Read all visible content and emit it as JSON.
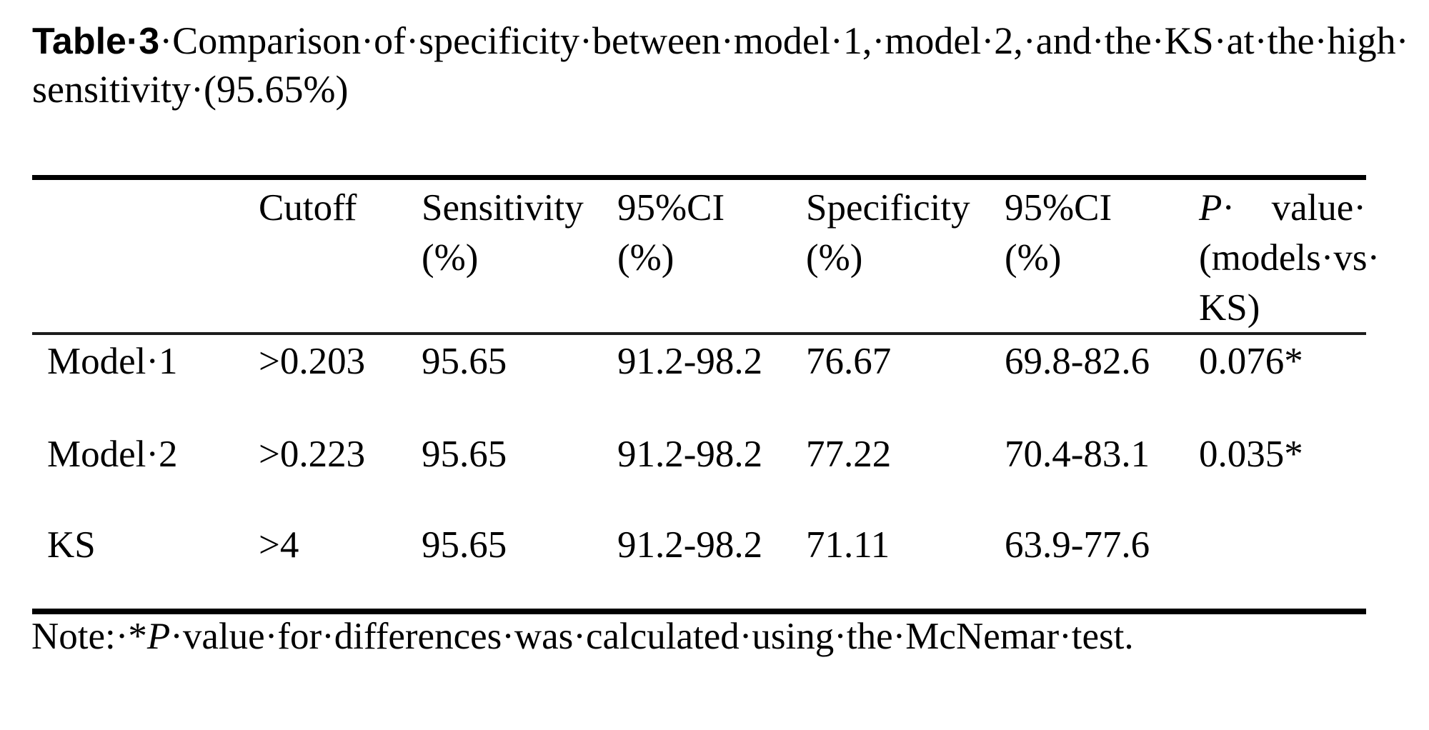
{
  "title": {
    "label": "Table·3",
    "line1_rest": "·Comparison·of·specificity·between·model·1,·model·2,·and·the·KS·at·the·high·",
    "line2": "sensitivity·(95.65%)"
  },
  "table": {
    "header": {
      "cutoff": "Cutoff",
      "sensitivity_l1": "Sensitivity",
      "sensitivity_l2": "(%)",
      "ci1_l1": "95%CI",
      "ci1_l2": "(%)",
      "specificity_l1": "Specificity",
      "specificity_l2": "(%)",
      "pvalue_p": "P",
      "pvalue_p_dot": "·",
      "pvalue_value": "value·",
      "pvalue_models": "(models·",
      "pvalue_vs": "vs·",
      "pvalue_ks": "KS)"
    },
    "rows": [
      {
        "label": "Model·1",
        "cutoff": ">0.203",
        "sensitivity": "95.65",
        "ci1": "91.2-98.2",
        "specificity": "76.67",
        "ci2": "69.8-82.6",
        "pvalue": "0.076*"
      },
      {
        "label": "Model·2",
        "cutoff": ">0.223",
        "sensitivity": "95.65",
        "ci1": "91.2-98.2",
        "specificity": "77.22",
        "ci2": "70.4-83.1",
        "pvalue": "0.035*"
      },
      {
        "label": "KS",
        "cutoff": ">4",
        "sensitivity": "95.65",
        "ci1": "91.2-98.2",
        "specificity": "71.11",
        "ci2": "63.9-77.6",
        "pvalue": ""
      }
    ]
  },
  "note": {
    "prefix": "Note:·*",
    "p": "P",
    "rest": "·value·for·differences·was·calculated·using·the·McNemar·test."
  },
  "chart_data": {
    "type": "table",
    "title": "Table 3 Comparison of specificity between model 1, model 2, and the KS at the high sensitivity (95.65%)",
    "columns": [
      "",
      "Cutoff",
      "Sensitivity (%)",
      "95%CI (%)",
      "Specificity (%)",
      "95%CI (%)",
      "P value (models vs KS)"
    ],
    "rows": [
      [
        "Model 1",
        ">0.203",
        "95.65",
        "91.2-98.2",
        "76.67",
        "69.8-82.6",
        "0.076*"
      ],
      [
        "Model 2",
        ">0.223",
        "95.65",
        "91.2-98.2",
        "77.22",
        "70.4-83.1",
        "0.035*"
      ],
      [
        "KS",
        ">4",
        "95.65",
        "91.2-98.2",
        "71.11",
        "63.9-77.6",
        ""
      ]
    ],
    "note": "Note: *P value for differences was calculated using the McNemar test."
  }
}
